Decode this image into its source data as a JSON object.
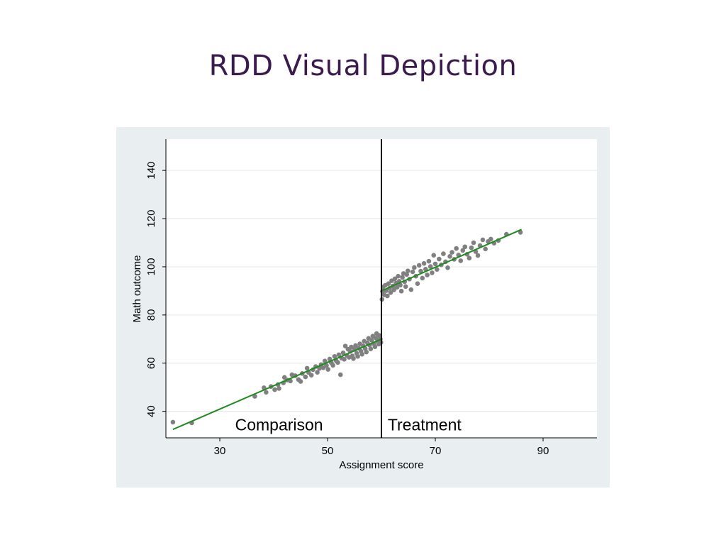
{
  "slide": {
    "title": "RDD Visual Depiction"
  },
  "colors": {
    "title": "#3b1a4e",
    "points": "#808080",
    "fit_line": "#1f8a1f",
    "cutoff": "#000000",
    "plot_region": "#e9eff1"
  },
  "chart_data": {
    "type": "scatter",
    "title": "",
    "xlabel": "Assignment score",
    "ylabel": "Math outcome",
    "xlim": [
      20,
      100
    ],
    "ylim": [
      29,
      153
    ],
    "xticks": [
      30,
      50,
      70,
      90
    ],
    "yticks": [
      40,
      60,
      80,
      100,
      120,
      140
    ],
    "grid": true,
    "cutoff": 60,
    "annotations": [
      {
        "text": "Comparison",
        "x": 41,
        "y": 34.5
      },
      {
        "text": "Treatment",
        "x": 68,
        "y": 34.5
      }
    ],
    "fit_lines": [
      {
        "name": "",
        "x": [
          21.3,
          60
        ],
        "y": [
          32.5,
          70
        ]
      },
      {
        "name": "",
        "x": [
          60,
          86
        ],
        "y": [
          90,
          115.5
        ]
      }
    ],
    "points": [
      [
        21.3,
        35.5
      ],
      [
        24.8,
        35.2
      ],
      [
        36.5,
        46.2
      ],
      [
        38.2,
        49.8
      ],
      [
        38.6,
        47.9
      ],
      [
        39.5,
        50.3
      ],
      [
        40.2,
        49.0
      ],
      [
        40.8,
        51.1
      ],
      [
        41.0,
        49.5
      ],
      [
        41.8,
        51.8
      ],
      [
        42.0,
        54.1
      ],
      [
        42.5,
        53.0
      ],
      [
        43.1,
        52.6
      ],
      [
        43.4,
        55.2
      ],
      [
        44.0,
        54.8
      ],
      [
        44.6,
        53.2
      ],
      [
        45.0,
        52.4
      ],
      [
        45.3,
        55.7
      ],
      [
        45.9,
        54.3
      ],
      [
        46.2,
        57.9
      ],
      [
        46.5,
        56.1
      ],
      [
        47.0,
        55.0
      ],
      [
        47.3,
        57.3
      ],
      [
        47.8,
        58.6
      ],
      [
        48.1,
        56.2
      ],
      [
        48.5,
        57.8
      ],
      [
        48.8,
        59.4
      ],
      [
        49.2,
        58.1
      ],
      [
        49.5,
        60.9
      ],
      [
        49.8,
        59.0
      ],
      [
        50.1,
        57.4
      ],
      [
        50.4,
        61.7
      ],
      [
        50.7,
        60.2
      ],
      [
        51.0,
        59.1
      ],
      [
        51.3,
        62.8
      ],
      [
        51.6,
        61.0
      ],
      [
        51.9,
        60.3
      ],
      [
        52.1,
        63.5
      ],
      [
        52.4,
        55.2
      ],
      [
        52.6,
        62.1
      ],
      [
        52.9,
        64.3
      ],
      [
        53.1,
        61.6
      ],
      [
        53.3,
        67.1
      ],
      [
        53.6,
        63.2
      ],
      [
        53.8,
        65.8
      ],
      [
        54.0,
        62.4
      ],
      [
        54.2,
        64.9
      ],
      [
        54.4,
        66.7
      ],
      [
        54.6,
        63.0
      ],
      [
        54.8,
        61.9
      ],
      [
        55.0,
        65.7
      ],
      [
        55.2,
        67.3
      ],
      [
        55.4,
        64.1
      ],
      [
        55.6,
        62.8
      ],
      [
        55.8,
        66.2
      ],
      [
        56.0,
        68.0
      ],
      [
        56.2,
        65.0
      ],
      [
        56.4,
        63.7
      ],
      [
        56.6,
        67.2
      ],
      [
        56.8,
        69.1
      ],
      [
        57.0,
        66.0
      ],
      [
        57.2,
        64.6
      ],
      [
        57.4,
        68.4
      ],
      [
        57.6,
        70.3
      ],
      [
        57.8,
        67.5
      ],
      [
        58.0,
        65.9
      ],
      [
        58.2,
        69.5
      ],
      [
        58.4,
        71.2
      ],
      [
        58.6,
        68.1
      ],
      [
        58.8,
        66.8
      ],
      [
        59.0,
        70.4
      ],
      [
        59.1,
        72.3
      ],
      [
        59.3,
        69.2
      ],
      [
        59.5,
        67.9
      ],
      [
        59.6,
        71.5
      ],
      [
        59.8,
        70.0
      ],
      [
        59.9,
        68.6
      ],
      [
        60.1,
        86.5
      ],
      [
        60.2,
        89.8
      ],
      [
        60.3,
        91.6
      ],
      [
        60.5,
        88.4
      ],
      [
        60.7,
        92.3
      ],
      [
        60.9,
        90.1
      ],
      [
        61.1,
        87.9
      ],
      [
        61.3,
        93.0
      ],
      [
        61.5,
        91.1
      ],
      [
        61.7,
        89.3
      ],
      [
        61.9,
        94.2
      ],
      [
        62.1,
        92.0
      ],
      [
        62.3,
        90.4
      ],
      [
        62.5,
        95.0
      ],
      [
        62.7,
        93.2
      ],
      [
        62.9,
        91.5
      ],
      [
        63.1,
        96.1
      ],
      [
        63.3,
        94.0
      ],
      [
        63.5,
        92.4
      ],
      [
        63.7,
        89.9
      ],
      [
        63.9,
        95.6
      ],
      [
        64.1,
        97.2
      ],
      [
        64.3,
        93.8
      ],
      [
        64.5,
        91.8
      ],
      [
        64.7,
        96.8
      ],
      [
        64.9,
        98.3
      ],
      [
        65.2,
        94.9
      ],
      [
        65.5,
        90.5
      ],
      [
        65.8,
        97.9
      ],
      [
        66.1,
        99.7
      ],
      [
        66.4,
        96.1
      ],
      [
        66.7,
        93.0
      ],
      [
        67.0,
        100.6
      ],
      [
        67.3,
        98.2
      ],
      [
        67.6,
        95.3
      ],
      [
        67.9,
        101.4
      ],
      [
        68.2,
        99.0
      ],
      [
        68.5,
        96.6
      ],
      [
        68.8,
        102.3
      ],
      [
        69.1,
        100.1
      ],
      [
        69.4,
        97.5
      ],
      [
        69.7,
        104.8
      ],
      [
        70.0,
        101.2
      ],
      [
        70.3,
        98.9
      ],
      [
        70.7,
        103.2
      ],
      [
        71.1,
        100.8
      ],
      [
        71.5,
        105.4
      ],
      [
        71.9,
        102.1
      ],
      [
        72.3,
        99.6
      ],
      [
        72.7,
        104.3
      ],
      [
        73.1,
        106.0
      ],
      [
        73.5,
        103.1
      ],
      [
        73.9,
        107.6
      ],
      [
        74.3,
        104.9
      ],
      [
        74.7,
        102.5
      ],
      [
        75.1,
        106.8
      ],
      [
        75.5,
        108.3
      ],
      [
        75.9,
        105.2
      ],
      [
        76.3,
        103.6
      ],
      [
        76.7,
        107.9
      ],
      [
        77.1,
        110.0
      ],
      [
        77.5,
        106.3
      ],
      [
        77.9,
        104.7
      ],
      [
        78.3,
        108.8
      ],
      [
        78.8,
        111.2
      ],
      [
        79.3,
        107.4
      ],
      [
        79.8,
        110.5
      ],
      [
        80.3,
        111.5
      ],
      [
        80.9,
        109.8
      ],
      [
        81.7,
        110.9
      ],
      [
        83.2,
        113.5
      ],
      [
        85.8,
        114.3
      ]
    ]
  }
}
